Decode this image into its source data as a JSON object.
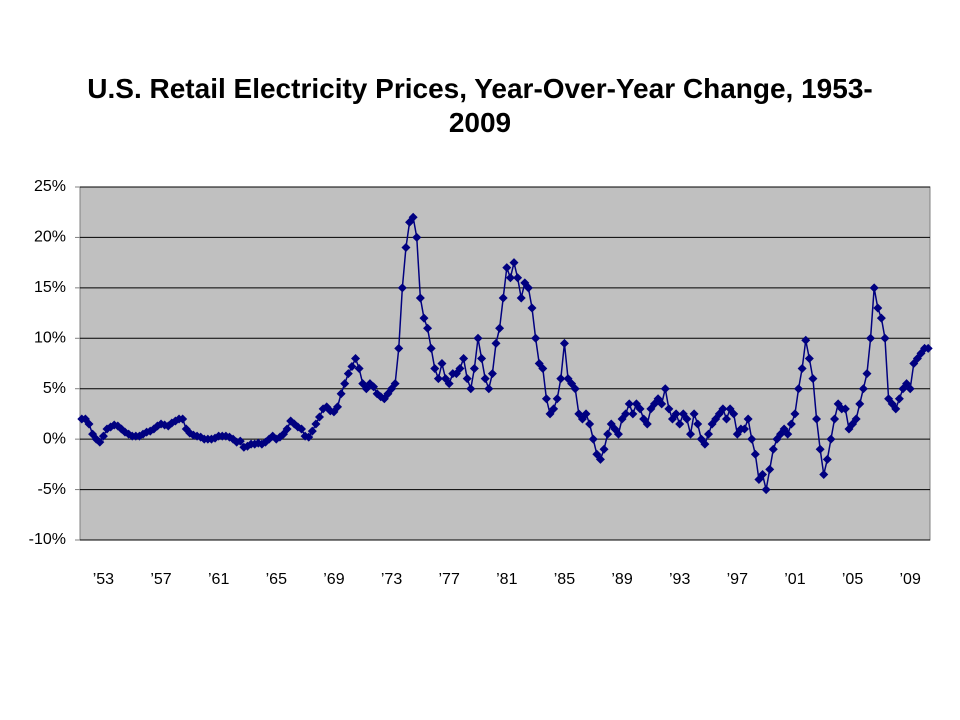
{
  "chart_data": {
    "type": "line",
    "title": "U.S. Retail Electricity Prices, Year-Over-Year Change, 1953-2009",
    "categories": [
      null,
      null,
      null,
      null,
      null,
      null,
      "’53",
      null,
      null,
      null,
      null,
      null,
      null,
      null,
      null,
      null,
      null,
      null,
      null,
      null,
      null,
      null,
      "’57",
      null,
      null,
      null,
      null,
      null,
      null,
      null,
      null,
      null,
      null,
      null,
      null,
      null,
      null,
      null,
      "’61",
      null,
      null,
      null,
      null,
      null,
      null,
      null,
      null,
      null,
      null,
      null,
      null,
      null,
      null,
      null,
      "’65",
      null,
      null,
      null,
      null,
      null,
      null,
      null,
      null,
      null,
      null,
      null,
      null,
      null,
      null,
      null,
      "’69",
      null,
      null,
      null,
      null,
      null,
      null,
      null,
      null,
      null,
      null,
      null,
      null,
      null,
      null,
      null,
      "’73",
      null,
      null,
      null,
      null,
      null,
      null,
      null,
      null,
      null,
      null,
      null,
      null,
      null,
      null,
      null,
      "’77",
      null,
      null,
      null,
      null,
      null,
      null,
      null,
      null,
      null,
      null,
      null,
      null,
      null,
      null,
      null,
      "’81",
      null,
      null,
      null,
      null,
      null,
      null,
      null,
      null,
      null,
      null,
      null,
      null,
      null,
      null,
      null,
      "’85",
      null,
      null,
      null,
      null,
      null,
      null,
      null,
      null,
      null,
      null,
      null,
      null,
      null,
      null,
      null,
      "’89",
      null,
      null,
      null,
      null,
      null,
      null,
      null,
      null,
      null,
      null,
      null,
      null,
      null,
      null,
      null,
      "’93",
      null,
      null,
      null,
      null,
      null,
      null,
      null,
      null,
      null,
      null,
      null,
      null,
      null,
      null,
      null,
      "’97",
      null,
      null,
      null,
      null,
      null,
      null,
      null,
      null,
      null,
      null,
      null,
      null,
      null,
      null,
      null,
      "’01",
      null,
      null,
      null,
      null,
      null,
      null,
      null,
      null,
      null,
      null,
      null,
      null,
      null,
      null,
      null,
      "’05",
      null,
      null,
      null,
      null,
      null,
      null,
      null,
      null,
      null,
      null,
      null,
      null,
      null,
      null,
      null,
      "’09",
      null,
      null,
      null,
      null,
      null
    ],
    "series": [
      {
        "color": "#000080",
        "values": [
          2,
          2,
          1.5,
          0.5,
          0,
          -0.3,
          0.3,
          1,
          1.2,
          1.4,
          1.3,
          1,
          0.7,
          0.5,
          0.3,
          0.3,
          0.3,
          0.5,
          0.7,
          0.8,
          1,
          1.3,
          1.5,
          1.4,
          1.3,
          1.6,
          1.8,
          2,
          2,
          1,
          0.6,
          0.4,
          0.3,
          0.2,
          0,
          0,
          0,
          0.1,
          0.3,
          0.3,
          0.3,
          0.2,
          0,
          -0.3,
          -0.2,
          -0.8,
          -0.7,
          -0.5,
          -0.5,
          -0.4,
          -0.5,
          -0.3,
          0,
          0.3,
          0,
          0.2,
          0.5,
          1,
          1.8,
          1.5,
          1.2,
          1,
          0.3,
          0.2,
          0.8,
          1.5,
          2.2,
          3,
          3.2,
          2.8,
          2.7,
          3.2,
          4.5,
          5.5,
          6.5,
          7.2,
          8,
          7,
          5.5,
          5,
          5.5,
          5.2,
          4.5,
          4.2,
          4,
          4.5,
          5,
          5.5,
          9,
          15,
          19,
          21.5,
          22,
          20,
          14,
          12,
          11,
          9,
          7,
          6,
          7.5,
          6,
          5.5,
          6.5,
          6.5,
          7,
          8,
          6,
          5,
          7,
          10,
          8,
          6,
          5,
          6.5,
          9.5,
          11,
          14,
          17,
          16,
          17.5,
          16,
          14,
          15.5,
          15,
          13,
          10,
          7.5,
          7,
          4,
          2.5,
          3,
          4,
          6,
          9.5,
          6,
          5.5,
          5,
          2.5,
          2,
          2.5,
          1.5,
          0,
          -1.5,
          -2,
          -1,
          0.5,
          1.5,
          1,
          0.5,
          2,
          2.5,
          3.5,
          2.5,
          3.5,
          3,
          2,
          1.5,
          3,
          3.5,
          4,
          3.5,
          5,
          3,
          2,
          2.5,
          1.5,
          2.5,
          2,
          0.5,
          2.5,
          1.5,
          0,
          -0.5,
          0.5,
          1.5,
          2,
          2.5,
          3,
          2,
          3,
          2.5,
          0.5,
          1,
          1,
          2,
          0,
          -1.5,
          -4,
          -3.5,
          -5,
          -3,
          -1,
          0,
          0.5,
          1,
          0.5,
          1.5,
          2.5,
          5,
          7,
          9.8,
          8,
          6,
          2,
          -1,
          -3.5,
          -2,
          0,
          2,
          3.5,
          3,
          3,
          1,
          1.5,
          2,
          3.5,
          5,
          6.5,
          10,
          15,
          13,
          12,
          10,
          4,
          3.5,
          3,
          4,
          5,
          5.5,
          5,
          7.5,
          8,
          8.5,
          9,
          9
        ]
      }
    ],
    "ylim": [
      -10,
      25
    ],
    "yticks": [
      {
        "value": -10,
        "label": "-10%"
      },
      {
        "value": -5,
        "label": "-5%"
      },
      {
        "value": 0,
        "label": "0%"
      },
      {
        "value": 5,
        "label": "5%"
      },
      {
        "value": 10,
        "label": "10%"
      },
      {
        "value": 15,
        "label": "15%"
      },
      {
        "value": 20,
        "label": "20%"
      },
      {
        "value": 25,
        "label": "25%"
      }
    ],
    "grid": true,
    "plot_background": "#c0c0c0"
  }
}
